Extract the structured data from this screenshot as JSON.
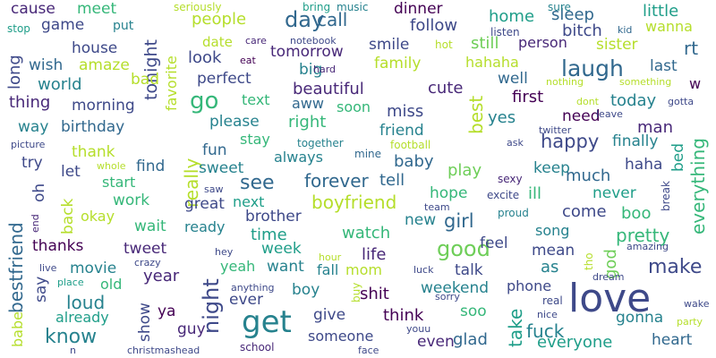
{
  "palette": {
    "background": "#ffffff",
    "colors": [
      "#440154",
      "#482878",
      "#3e4989",
      "#31688e",
      "#26828e",
      "#1f9e89",
      "#35b779",
      "#6ece58",
      "#b5de2b",
      "#fde725"
    ]
  },
  "words": [
    {
      "text": "love",
      "color": "#3e4989",
      "vertical": false
    },
    {
      "text": "get",
      "color": "#26828e",
      "vertical": false
    },
    {
      "text": "laugh",
      "color": "#31688e",
      "vertical": false
    },
    {
      "text": "go",
      "color": "#35b779",
      "vertical": false
    },
    {
      "text": "night",
      "color": "#3e4989",
      "vertical": true
    },
    {
      "text": "good",
      "color": "#6ece58",
      "vertical": false
    },
    {
      "text": "day",
      "color": "#31688e",
      "vertical": false
    },
    {
      "text": "know",
      "color": "#26828e",
      "vertical": false
    },
    {
      "text": "make",
      "color": "#3e4989",
      "vertical": false
    },
    {
      "text": "see",
      "color": "#31688e",
      "vertical": false
    },
    {
      "text": "happy",
      "color": "#3e4989",
      "vertical": false
    },
    {
      "text": "beautiful",
      "color": "#482878",
      "vertical": false
    },
    {
      "text": "tomorrow",
      "color": "#482878",
      "vertical": false
    },
    {
      "text": "really",
      "color": "#b5de2b",
      "vertical": true
    },
    {
      "text": "everything",
      "color": "#35b779",
      "vertical": true
    },
    {
      "text": "bestfriend",
      "color": "#31688e",
      "vertical": true
    },
    {
      "text": "boyfriend",
      "color": "#b5de2b",
      "vertical": false
    },
    {
      "text": "forever",
      "color": "#31688e",
      "vertical": false
    },
    {
      "text": "pretty",
      "color": "#35b779",
      "vertical": false
    },
    {
      "text": "best",
      "color": "#b5de2b",
      "vertical": true
    },
    {
      "text": "tonight",
      "color": "#3e4989",
      "vertical": true
    },
    {
      "text": "girl",
      "color": "#31688e",
      "vertical": false
    },
    {
      "text": "fuck",
      "color": "#26828e",
      "vertical": false
    },
    {
      "text": "everyone",
      "color": "#1f9e89",
      "vertical": false
    },
    {
      "text": "heart",
      "color": "#31688e",
      "vertical": false
    },
    {
      "text": "gonna",
      "color": "#26828e",
      "vertical": false
    },
    {
      "text": "take",
      "color": "#1f9e89",
      "vertical": true
    },
    {
      "text": "god",
      "color": "#6ece58",
      "vertical": true
    },
    {
      "text": "time",
      "color": "#1f9e89",
      "vertical": false
    },
    {
      "text": "life",
      "color": "#482878",
      "vertical": false
    },
    {
      "text": "watch",
      "color": "#35b779",
      "vertical": false
    },
    {
      "text": "think",
      "color": "#440154",
      "vertical": false
    },
    {
      "text": "shit",
      "color": "#440154",
      "vertical": false
    },
    {
      "text": "year",
      "color": "#482878",
      "vertical": false
    },
    {
      "text": "loud",
      "color": "#26828e",
      "vertical": false
    },
    {
      "text": "go",
      "color": "#35b779",
      "vertical": false
    },
    {
      "text": "people",
      "color": "#b5de2b",
      "vertical": false
    },
    {
      "text": "call",
      "color": "#31688e",
      "vertical": false
    },
    {
      "text": "follow",
      "color": "#3e4989",
      "vertical": false
    },
    {
      "text": "still",
      "color": "#6ece58",
      "vertical": false
    },
    {
      "text": "home",
      "color": "#1f9e89",
      "vertical": false
    },
    {
      "text": "sleep",
      "color": "#31688e",
      "vertical": false
    },
    {
      "text": "little",
      "color": "#1f9e89",
      "vertical": false
    },
    {
      "text": "bitch",
      "color": "#3e4989",
      "vertical": false
    },
    {
      "text": "wanna",
      "color": "#b5de2b",
      "vertical": false
    },
    {
      "text": "rt",
      "color": "#31688e",
      "vertical": false
    },
    {
      "text": "person",
      "color": "#482878",
      "vertical": false
    },
    {
      "text": "sister",
      "color": "#b5de2b",
      "vertical": false
    },
    {
      "text": "last",
      "color": "#31688e",
      "vertical": false
    },
    {
      "text": "w",
      "color": "#440154",
      "vertical": false
    },
    {
      "text": "smile",
      "color": "#3e4989",
      "vertical": false
    },
    {
      "text": "family",
      "color": "#b5de2b",
      "vertical": false
    },
    {
      "text": "hahaha",
      "color": "#b5de2b",
      "vertical": false
    },
    {
      "text": "well",
      "color": "#31688e",
      "vertical": false
    },
    {
      "text": "first",
      "color": "#440154",
      "vertical": false
    },
    {
      "text": "today",
      "color": "#26828e",
      "vertical": false
    },
    {
      "text": "man",
      "color": "#482878",
      "vertical": false
    },
    {
      "text": "finally",
      "color": "#26828e",
      "vertical": false
    },
    {
      "text": "haha",
      "color": "#3e4989",
      "vertical": false
    },
    {
      "text": "bed",
      "color": "#1f9e89",
      "vertical": true
    },
    {
      "text": "boo",
      "color": "#35b779",
      "vertical": false
    },
    {
      "text": "cute",
      "color": "#482878",
      "vertical": false
    },
    {
      "text": "yes",
      "color": "#26828e",
      "vertical": false
    },
    {
      "text": "need",
      "color": "#440154",
      "vertical": false
    },
    {
      "text": "much",
      "color": "#31688e",
      "vertical": false
    },
    {
      "text": "keep",
      "color": "#26828e",
      "vertical": false
    },
    {
      "text": "miss",
      "color": "#3e4989",
      "vertical": false
    },
    {
      "text": "friend",
      "color": "#26828e",
      "vertical": false
    },
    {
      "text": "baby",
      "color": "#31688e",
      "vertical": false
    },
    {
      "text": "play",
      "color": "#6ece58",
      "vertical": false
    },
    {
      "text": "tell",
      "color": "#31688e",
      "vertical": false
    },
    {
      "text": "ill",
      "color": "#35b779",
      "vertical": false
    },
    {
      "text": "never",
      "color": "#1f9e89",
      "vertical": false
    },
    {
      "text": "come",
      "color": "#3e4989",
      "vertical": false
    },
    {
      "text": "hope",
      "color": "#35b779",
      "vertical": false
    },
    {
      "text": "new",
      "color": "#26828e",
      "vertical": false
    },
    {
      "text": "song",
      "color": "#26828e",
      "vertical": false
    },
    {
      "text": "feel",
      "color": "#3e4989",
      "vertical": false
    },
    {
      "text": "mean",
      "color": "#3e4989",
      "vertical": false
    },
    {
      "text": "as",
      "color": "#26828e",
      "vertical": false
    },
    {
      "text": "talk",
      "color": "#3e4989",
      "vertical": false
    },
    {
      "text": "weekend",
      "color": "#26828e",
      "vertical": false
    },
    {
      "text": "phone",
      "color": "#3e4989",
      "vertical": false
    },
    {
      "text": "soo",
      "color": "#35b779",
      "vertical": false
    },
    {
      "text": "glad",
      "color": "#31688e",
      "vertical": false
    },
    {
      "text": "even",
      "color": "#482878",
      "vertical": false
    },
    {
      "text": "give",
      "color": "#3e4989",
      "vertical": false
    },
    {
      "text": "someone",
      "color": "#3e4989",
      "vertical": false
    },
    {
      "text": "ever",
      "color": "#3e4989",
      "vertical": false
    },
    {
      "text": "boy",
      "color": "#26828e",
      "vertical": false
    },
    {
      "text": "want",
      "color": "#26828e",
      "vertical": false
    },
    {
      "text": "fall",
      "color": "#26828e",
      "vertical": false
    },
    {
      "text": "mom",
      "color": "#b5de2b",
      "vertical": false
    },
    {
      "text": "week",
      "color": "#1f9e89",
      "vertical": false
    },
    {
      "text": "yeah",
      "color": "#35b779",
      "vertical": false
    },
    {
      "text": "brother",
      "color": "#3e4989",
      "vertical": false
    },
    {
      "text": "ready",
      "color": "#26828e",
      "vertical": false
    },
    {
      "text": "next",
      "color": "#1f9e89",
      "vertical": false
    },
    {
      "text": "great",
      "color": "#3e4989",
      "vertical": false
    },
    {
      "text": "sweet",
      "color": "#26828e",
      "vertical": false
    },
    {
      "text": "fun",
      "color": "#31688e",
      "vertical": false
    },
    {
      "text": "stay",
      "color": "#35b779",
      "vertical": false
    },
    {
      "text": "always",
      "color": "#26828e",
      "vertical": false
    },
    {
      "text": "right",
      "color": "#35b779",
      "vertical": false
    },
    {
      "text": "soon",
      "color": "#35b779",
      "vertical": false
    },
    {
      "text": "aww",
      "color": "#31688e",
      "vertical": false
    },
    {
      "text": "text",
      "color": "#35b779",
      "vertical": false
    },
    {
      "text": "please",
      "color": "#26828e",
      "vertical": false
    },
    {
      "text": "perfect",
      "color": "#3e4989",
      "vertical": false
    },
    {
      "text": "big",
      "color": "#26828e",
      "vertical": false
    },
    {
      "text": "look",
      "color": "#3e4989",
      "vertical": false
    },
    {
      "text": "date",
      "color": "#b5de2b",
      "vertical": false
    },
    {
      "text": "favorite",
      "color": "#b5de2b",
      "vertical": true
    },
    {
      "text": "house",
      "color": "#3e4989",
      "vertical": false
    },
    {
      "text": "wish",
      "color": "#31688e",
      "vertical": false
    },
    {
      "text": "amaze",
      "color": "#b5de2b",
      "vertical": false
    },
    {
      "text": "bad",
      "color": "#b5de2b",
      "vertical": false
    },
    {
      "text": "world",
      "color": "#26828e",
      "vertical": false
    },
    {
      "text": "morning",
      "color": "#3e4989",
      "vertical": false
    },
    {
      "text": "thing",
      "color": "#482878",
      "vertical": false
    },
    {
      "text": "way",
      "color": "#26828e",
      "vertical": false
    },
    {
      "text": "birthday",
      "color": "#31688e",
      "vertical": false
    },
    {
      "text": "thank",
      "color": "#b5de2b",
      "vertical": false
    },
    {
      "text": "try",
      "color": "#3e4989",
      "vertical": false
    },
    {
      "text": "let",
      "color": "#3e4989",
      "vertical": false
    },
    {
      "text": "find",
      "color": "#31688e",
      "vertical": false
    },
    {
      "text": "start",
      "color": "#35b779",
      "vertical": false
    },
    {
      "text": "work",
      "color": "#35b779",
      "vertical": false
    },
    {
      "text": "okay",
      "color": "#b5de2b",
      "vertical": false
    },
    {
      "text": "wait",
      "color": "#35b779",
      "vertical": false
    },
    {
      "text": "thanks",
      "color": "#440154",
      "vertical": false
    },
    {
      "text": "tweet",
      "color": "#482878",
      "vertical": false
    },
    {
      "text": "movie",
      "color": "#26828e",
      "vertical": false
    },
    {
      "text": "old",
      "color": "#35b779",
      "vertical": false
    },
    {
      "text": "say",
      "color": "#3e4989",
      "vertical": true
    },
    {
      "text": "show",
      "color": "#3e4989",
      "vertical": true
    },
    {
      "text": "ya",
      "color": "#440154",
      "vertical": false
    },
    {
      "text": "guy",
      "color": "#482878",
      "vertical": false
    },
    {
      "text": "already",
      "color": "#1f9e89",
      "vertical": false
    },
    {
      "text": "cause",
      "color": "#482878",
      "vertical": false
    },
    {
      "text": "meet",
      "color": "#35b779",
      "vertical": false
    },
    {
      "text": "game",
      "color": "#3e4989",
      "vertical": false
    },
    {
      "text": "put",
      "color": "#26828e",
      "vertical": false
    },
    {
      "text": "long",
      "color": "#3e4989",
      "vertical": true
    },
    {
      "text": "dinner",
      "color": "#440154",
      "vertical": false
    },
    {
      "text": "oh",
      "color": "#3e4989",
      "vertical": true
    },
    {
      "text": "back",
      "color": "#b5de2b",
      "vertical": true
    },
    {
      "text": "babe",
      "color": "#b5de2b",
      "vertical": true
    },
    {
      "text": "seriously",
      "color": "#b5de2b",
      "vertical": false
    },
    {
      "text": "bring",
      "color": "#1f9e89",
      "vertical": false
    },
    {
      "text": "music",
      "color": "#26828e",
      "vertical": false
    },
    {
      "text": "sure",
      "color": "#26828e",
      "vertical": false
    },
    {
      "text": "stop",
      "color": "#1f9e89",
      "vertical": false
    },
    {
      "text": "listen",
      "color": "#3e4989",
      "vertical": false
    },
    {
      "text": "kid",
      "color": "#31688e",
      "vertical": false
    },
    {
      "text": "care",
      "color": "#482878",
      "vertical": false
    },
    {
      "text": "notebook",
      "color": "#3e4989",
      "vertical": false
    },
    {
      "text": "hot",
      "color": "#b5de2b",
      "vertical": false
    },
    {
      "text": "eat",
      "color": "#440154",
      "vertical": false
    },
    {
      "text": "hard",
      "color": "#482878",
      "vertical": false
    },
    {
      "text": "nothing",
      "color": "#b5de2b",
      "vertical": false
    },
    {
      "text": "something",
      "color": "#b5de2b",
      "vertical": false
    },
    {
      "text": "dont",
      "color": "#b5de2b",
      "vertical": false
    },
    {
      "text": "gotta",
      "color": "#3e4989",
      "vertical": false
    },
    {
      "text": "leave",
      "color": "#3e4989",
      "vertical": false
    },
    {
      "text": "picture",
      "color": "#3e4989",
      "vertical": false
    },
    {
      "text": "together",
      "color": "#26828e",
      "vertical": false
    },
    {
      "text": "football",
      "color": "#b5de2b",
      "vertical": false
    },
    {
      "text": "twitter",
      "color": "#3e4989",
      "vertical": false
    },
    {
      "text": "ask",
      "color": "#3e4989",
      "vertical": false
    },
    {
      "text": "whole",
      "color": "#b5de2b",
      "vertical": false
    },
    {
      "text": "mine",
      "color": "#31688e",
      "vertical": false
    },
    {
      "text": "sexy",
      "color": "#482878",
      "vertical": false
    },
    {
      "text": "excite",
      "color": "#3e4989",
      "vertical": false
    },
    {
      "text": "saw",
      "color": "#3e4989",
      "vertical": false
    },
    {
      "text": "team",
      "color": "#3e4989",
      "vertical": false
    },
    {
      "text": "proud",
      "color": "#26828e",
      "vertical": false
    },
    {
      "text": "break",
      "color": "#3e4989",
      "vertical": true
    },
    {
      "text": "end",
      "color": "#482878",
      "vertical": true
    },
    {
      "text": "amazing",
      "color": "#3e4989",
      "vertical": false
    },
    {
      "text": "hey",
      "color": "#3e4989",
      "vertical": false
    },
    {
      "text": "crazy",
      "color": "#3e4989",
      "vertical": false
    },
    {
      "text": "hour",
      "color": "#b5de2b",
      "vertical": false
    },
    {
      "text": "tho",
      "color": "#b5de2b",
      "vertical": true
    },
    {
      "text": "luck",
      "color": "#3e4989",
      "vertical": false
    },
    {
      "text": "dream",
      "color": "#3e4989",
      "vertical": false
    },
    {
      "text": "live",
      "color": "#3e4989",
      "vertical": false
    },
    {
      "text": "place",
      "color": "#1f9e89",
      "vertical": false
    },
    {
      "text": "anything",
      "color": "#3e4989",
      "vertical": false
    },
    {
      "text": "buy",
      "color": "#b5de2b",
      "vertical": true
    },
    {
      "text": "sorry",
      "color": "#3e4989",
      "vertical": false
    },
    {
      "text": "real",
      "color": "#3e4989",
      "vertical": false
    },
    {
      "text": "wake",
      "color": "#3e4989",
      "vertical": false
    },
    {
      "text": "nice",
      "color": "#3e4989",
      "vertical": false
    },
    {
      "text": "party",
      "color": "#b5de2b",
      "vertical": false
    },
    {
      "text": "youu",
      "color": "#3e4989",
      "vertical": false
    },
    {
      "text": "face",
      "color": "#3e4989",
      "vertical": false
    },
    {
      "text": "school",
      "color": "#482878",
      "vertical": false
    },
    {
      "text": "christmashead",
      "color": "#3e4989",
      "vertical": false
    },
    {
      "text": "n",
      "color": "#3e4989",
      "vertical": false
    }
  ]
}
